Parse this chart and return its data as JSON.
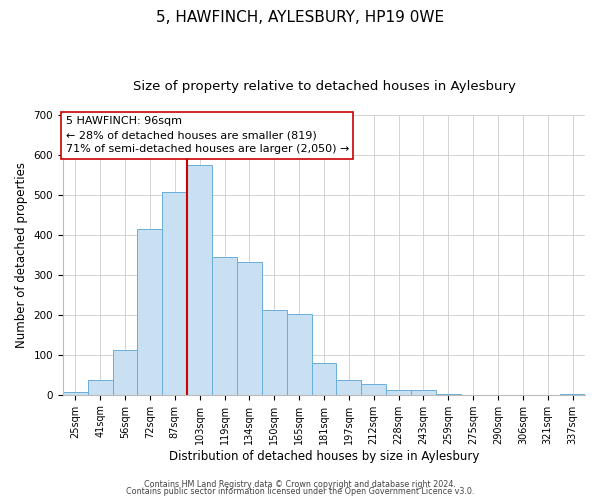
{
  "title": "5, HAWFINCH, AYLESBURY, HP19 0WE",
  "subtitle": "Size of property relative to detached houses in Aylesbury",
  "xlabel": "Distribution of detached houses by size in Aylesbury",
  "ylabel": "Number of detached properties",
  "bar_labels": [
    "25sqm",
    "41sqm",
    "56sqm",
    "72sqm",
    "87sqm",
    "103sqm",
    "119sqm",
    "134sqm",
    "150sqm",
    "165sqm",
    "181sqm",
    "197sqm",
    "212sqm",
    "228sqm",
    "243sqm",
    "259sqm",
    "275sqm",
    "290sqm",
    "306sqm",
    "321sqm",
    "337sqm"
  ],
  "bar_values": [
    8,
    38,
    112,
    415,
    507,
    575,
    345,
    333,
    212,
    202,
    80,
    37,
    26,
    12,
    13,
    3,
    0,
    0,
    0,
    0,
    2
  ],
  "bar_color": "#c9dff2",
  "bar_edgecolor": "#6aaed6",
  "vline_color": "#cc0000",
  "annotation_title": "5 HAWFINCH: 96sqm",
  "annotation_line1": "← 28% of detached houses are smaller (819)",
  "annotation_line2": "71% of semi-detached houses are larger (2,050) →",
  "annotation_box_edgecolor": "#cc0000",
  "annotation_box_facecolor": "#ffffff",
  "ylim": [
    0,
    700
  ],
  "yticks": [
    0,
    100,
    200,
    300,
    400,
    500,
    600,
    700
  ],
  "footer1": "Contains HM Land Registry data © Crown copyright and database right 2024.",
  "footer2": "Contains public sector information licensed under the Open Government Licence v3.0.",
  "background_color": "#ffffff",
  "title_fontsize": 11,
  "subtitle_fontsize": 9.5,
  "axis_label_fontsize": 8.5,
  "tick_fontsize": 7,
  "annotation_fontsize": 8,
  "footer_fontsize": 5.8
}
